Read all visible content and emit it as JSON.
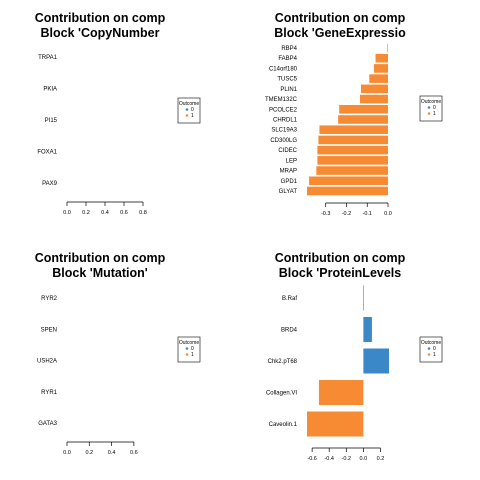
{
  "chart_data": [
    {
      "type": "bar",
      "orientation": "horizontal",
      "title_lines": [
        "Contribution on comp",
        "Block 'CopyNumber"
      ],
      "categories": [
        "TRPA1",
        "PKIA",
        "PI15",
        "FOXA1",
        "PAX9"
      ],
      "values": [
        0,
        0,
        0,
        0,
        0
      ],
      "bar_colors": [],
      "xlim": [
        0,
        0.8
      ],
      "xticks": [
        "0.0",
        "0.2",
        "0.4",
        "0.6",
        "0.8"
      ],
      "legend": {
        "title": "Outcome",
        "labels": [
          "0",
          "1"
        ],
        "position": "right"
      }
    },
    {
      "type": "bar",
      "orientation": "horizontal",
      "title_lines": [
        "Contribution on comp",
        "Block 'GeneExpressio"
      ],
      "categories": [
        "RBP4",
        "FABP4",
        "C14orf180",
        "TUSC5",
        "PLIN1",
        "TMEM132C",
        "PCOLCE2",
        "CHRDL1",
        "SLC19A3",
        "CD300LG",
        "CIDEC",
        "LEP",
        "MRAP",
        "GPD1",
        "GLYAT"
      ],
      "values": [
        -0.003,
        -0.06,
        -0.068,
        -0.09,
        -0.13,
        -0.135,
        -0.235,
        -0.24,
        -0.33,
        -0.335,
        -0.34,
        -0.34,
        -0.345,
        -0.38,
        -0.39
      ],
      "bar_colors": [
        "#f68b33",
        "#f68b33",
        "#f68b33",
        "#f68b33",
        "#f68b33",
        "#f68b33",
        "#f68b33",
        "#f68b33",
        "#f68b33",
        "#f68b33",
        "#f68b33",
        "#f68b33",
        "#f68b33",
        "#f68b33",
        "#f68b33"
      ],
      "xlim": [
        -0.39,
        0
      ],
      "xticks": [
        "-0.3",
        "-0.2",
        "-0.1",
        "0.0"
      ],
      "legend": {
        "title": "Outcome",
        "labels": [
          "0",
          "1"
        ],
        "position": "right"
      }
    },
    {
      "type": "bar",
      "orientation": "horizontal",
      "title_lines": [
        "Contribution on comp",
        "Block 'Mutation'"
      ],
      "categories": [
        "RYR2",
        "SPEN",
        "USH2A",
        "RYR1",
        "GATA3"
      ],
      "values": [
        0,
        0,
        0,
        0,
        0
      ],
      "bar_colors": [],
      "xlim": [
        0,
        0.7
      ],
      "xticks": [
        "0.0",
        "0.2",
        "0.4",
        "0.6"
      ],
      "legend": {
        "title": "Outcome",
        "labels": [
          "0",
          "1"
        ],
        "position": "right"
      }
    },
    {
      "type": "bar",
      "orientation": "horizontal",
      "title_lines": [
        "Contribution on comp",
        "Block 'ProteinLevels"
      ],
      "categories": [
        "B.Raf",
        "BRD4",
        "Chk2.pT68",
        "Collagen.VI",
        "Caveolin.1"
      ],
      "values": [
        0.005,
        0.1,
        0.3,
        -0.52,
        -0.66
      ],
      "bar_colors": [
        "#3a88c8",
        "#3a88c8",
        "#3a88c8",
        "#f68b33",
        "#f68b33"
      ],
      "xlim": [
        -0.66,
        0.3
      ],
      "xticks": [
        "-0.6",
        "-0.4",
        "-0.2",
        "0.0",
        "0.2"
      ],
      "legend": {
        "title": "Outcome",
        "labels": [
          "0",
          "1"
        ],
        "position": "right"
      }
    }
  ],
  "colors": {
    "outcome_0": "#3a88c8",
    "outcome_1": "#f68b33"
  }
}
